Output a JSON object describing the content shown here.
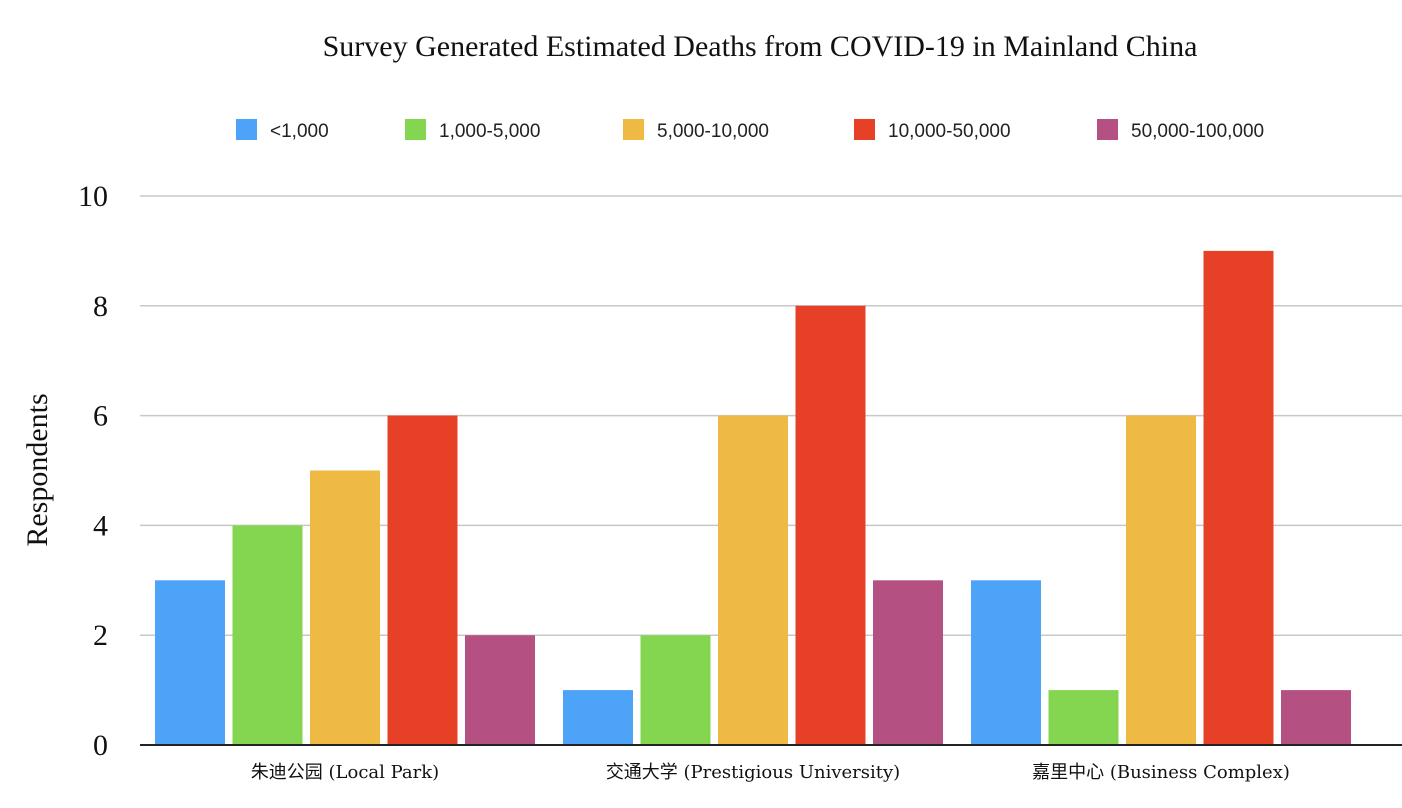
{
  "chart_data": {
    "type": "bar",
    "title": "Survey Generated Estimated Deaths from COVID-19 in Mainland China",
    "xlabel": "",
    "ylabel": "Respondents",
    "ylim": [
      0,
      10
    ],
    "yticks": [
      0,
      2,
      4,
      6,
      8,
      10
    ],
    "grid": true,
    "legend_position": "top",
    "categories": [
      "朱迪公园 (Local Park)",
      "交通大学 (Prestigious University)",
      "嘉里中心 (Business Complex)"
    ],
    "series": [
      {
        "name": "<1,000",
        "color": "#4da3f7",
        "values": [
          3,
          1,
          3
        ]
      },
      {
        "name": "1,000-5,000",
        "color": "#84d651",
        "values": [
          4,
          2,
          1
        ]
      },
      {
        "name": "5,000-10,000",
        "color": "#efba44",
        "values": [
          5,
          6,
          6
        ]
      },
      {
        "name": "10,000-50,000",
        "color": "#e64027",
        "values": [
          6,
          8,
          9
        ]
      },
      {
        "name": "50,000-100,000",
        "color": "#b55083",
        "values": [
          2,
          3,
          1
        ]
      }
    ]
  }
}
